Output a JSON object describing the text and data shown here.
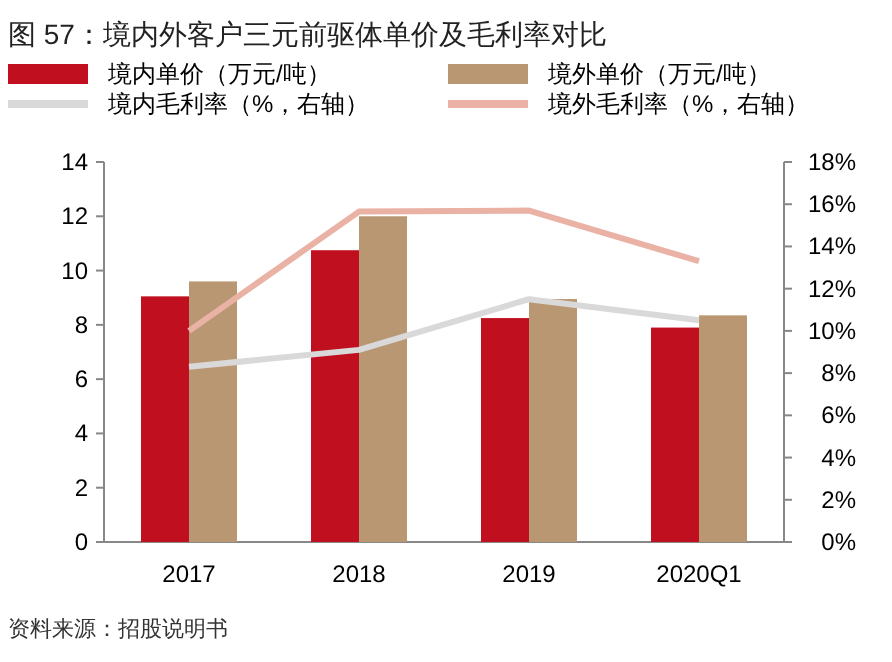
{
  "chart_data": {
    "type": "bar",
    "title": "图 57：境内外客户三元前驱体单价及毛利率对比",
    "categories": [
      "2017",
      "2018",
      "2019",
      "2020Q1"
    ],
    "series": [
      {
        "name": "境内单价（万元/吨）",
        "color": "#c00f1e",
        "values": [
          9.05,
          10.75,
          8.25,
          7.9
        ]
      },
      {
        "name": "境外单价（万元/吨）",
        "color": "#b89772",
        "values": [
          9.6,
          12.0,
          8.95,
          8.35
        ]
      },
      {
        "name": "境内毛利率（%，右轴）",
        "type": "line",
        "axis": "y2",
        "color": "#d9d9d9",
        "values": [
          8.3,
          9.1,
          11.5,
          10.5
        ]
      },
      {
        "name": "境外毛利率（%，右轴）",
        "type": "line",
        "axis": "y2",
        "color": "#eab1a5",
        "values": [
          10.0,
          15.65,
          15.7,
          13.3
        ]
      }
    ],
    "ylim": [
      0,
      14
    ],
    "yticks": [
      0,
      2,
      4,
      6,
      8,
      10,
      12,
      14
    ],
    "y2lim": [
      0,
      18
    ],
    "y2ticks": [
      {
        "value": 0,
        "label": "0%"
      },
      {
        "value": 2,
        "label": "2%"
      },
      {
        "value": 4,
        "label": "4%"
      },
      {
        "value": 6,
        "label": "6%"
      },
      {
        "value": 8,
        "label": "8%"
      },
      {
        "value": 10,
        "label": "10%"
      },
      {
        "value": 12,
        "label": "12%"
      },
      {
        "value": 14,
        "label": "14%"
      },
      {
        "value": 16,
        "label": "16%"
      },
      {
        "value": 18,
        "label": "18%"
      }
    ],
    "legend": "top",
    "grid": false,
    "annotations": [
      "资料来源：招股说明书"
    ]
  }
}
